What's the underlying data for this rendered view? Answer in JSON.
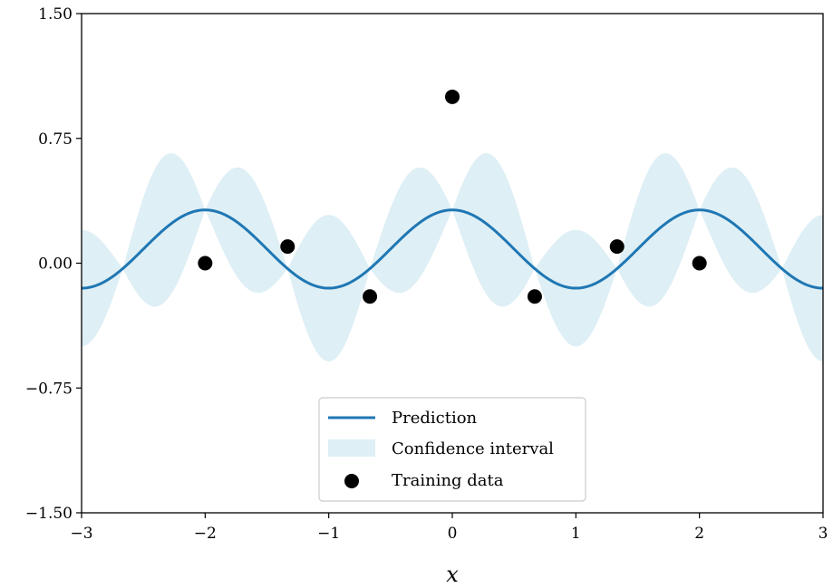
{
  "chart_data": {
    "type": "line",
    "title": "",
    "xlabel": "x",
    "ylabel": "",
    "xlim": [
      -3,
      3
    ],
    "ylim": [
      -1.5,
      1.5
    ],
    "xticks": [
      -3,
      -2,
      -1,
      0,
      1,
      2,
      3
    ],
    "xtick_labels": [
      "−3",
      "−2",
      "−1",
      "0",
      "1",
      "2",
      "3"
    ],
    "yticks": [
      -1.5,
      -0.75,
      0.0,
      0.75,
      1.5
    ],
    "ytick_labels": [
      "−1.50",
      "−0.75",
      "0.00",
      "0.75",
      "1.50"
    ],
    "grid": false,
    "legend_position": "lower-center",
    "colors": {
      "prediction": "#1f77b4",
      "confidence": "#add8e6",
      "training": "#000000"
    },
    "prediction": {
      "name": "Prediction",
      "mean_offset": 0.085,
      "amplitude": 0.235,
      "period": 2.0,
      "note_x_samples": [
        -3,
        -2.5,
        -2,
        -1.5,
        -1,
        -0.5,
        0,
        0.5,
        1,
        1.5,
        2,
        2.5,
        3
      ],
      "values": [
        -0.15,
        0.085,
        0.32,
        0.085,
        -0.15,
        0.085,
        0.32,
        0.085,
        -0.15,
        0.085,
        0.32,
        0.085,
        -0.15
      ]
    },
    "confidence_interval": {
      "name": "Confidence interval",
      "max_halfwidth_large": 0.44,
      "max_halfwidth_small": 0.35
    },
    "training_data": {
      "name": "Training data",
      "x": [
        -2.0,
        -1.333,
        -0.667,
        0.0,
        0.667,
        1.333,
        2.0
      ],
      "y": [
        0.0,
        0.1,
        -0.2,
        1.0,
        -0.2,
        0.1,
        0.0
      ]
    }
  }
}
